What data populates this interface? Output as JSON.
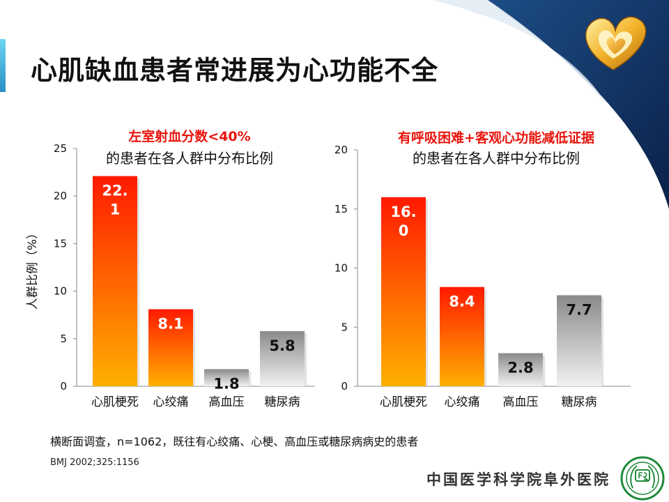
{
  "slide": {
    "title": "心肌缺血患者常进展为心功能不全",
    "footnote": "横断面调查，n=1062，既往有心绞痛、心梗、高血压或糖尿病病史的患者",
    "reference": "BMJ 2002;325:1156",
    "institution": "中国医学科学院阜外医院"
  },
  "colors": {
    "red_top": "#ff1a00",
    "red_bottom": "#ffb000",
    "gray_top": "#8a8a8a",
    "gray_bottom": "#f2f2f2",
    "highlight": "#e8140c",
    "accent_dark": "#0e2b57"
  },
  "icons": {
    "logo": "gold-heart-logo-icon",
    "seal": "hospital-seal-icon"
  },
  "chart_data": [
    {
      "type": "bar",
      "title_highlight": "左室射血分数<40%",
      "title": "的患者在各人群中分布比例",
      "ylabel": "人群比例（%）",
      "categories": [
        "心肌梗死",
        "心绞痛",
        "高血压",
        "糖尿病"
      ],
      "values": [
        22.1,
        8.1,
        1.8,
        5.8
      ],
      "value_labels": [
        "22.\n1",
        "8.1",
        "1.8",
        "5.8"
      ],
      "bar_styles": [
        "red",
        "red",
        "gray",
        "gray"
      ],
      "ylim": [
        0,
        25
      ],
      "yticks": [
        0,
        5,
        10,
        15,
        20,
        25
      ]
    },
    {
      "type": "bar",
      "title_highlight": "有呼吸困难+客观心功能减低证据",
      "title": "的患者在各人群中分布比例",
      "ylabel": "",
      "categories": [
        "心肌梗死",
        "心绞痛",
        "高血压",
        "糖尿病"
      ],
      "values": [
        16.0,
        8.4,
        2.8,
        7.7
      ],
      "value_labels": [
        "16.\n0",
        "8.4",
        "2.8",
        "7.7"
      ],
      "bar_styles": [
        "red",
        "red",
        "gray",
        "gray"
      ],
      "ylim": [
        0,
        20
      ],
      "yticks": [
        0,
        5,
        10,
        15,
        20
      ]
    }
  ]
}
